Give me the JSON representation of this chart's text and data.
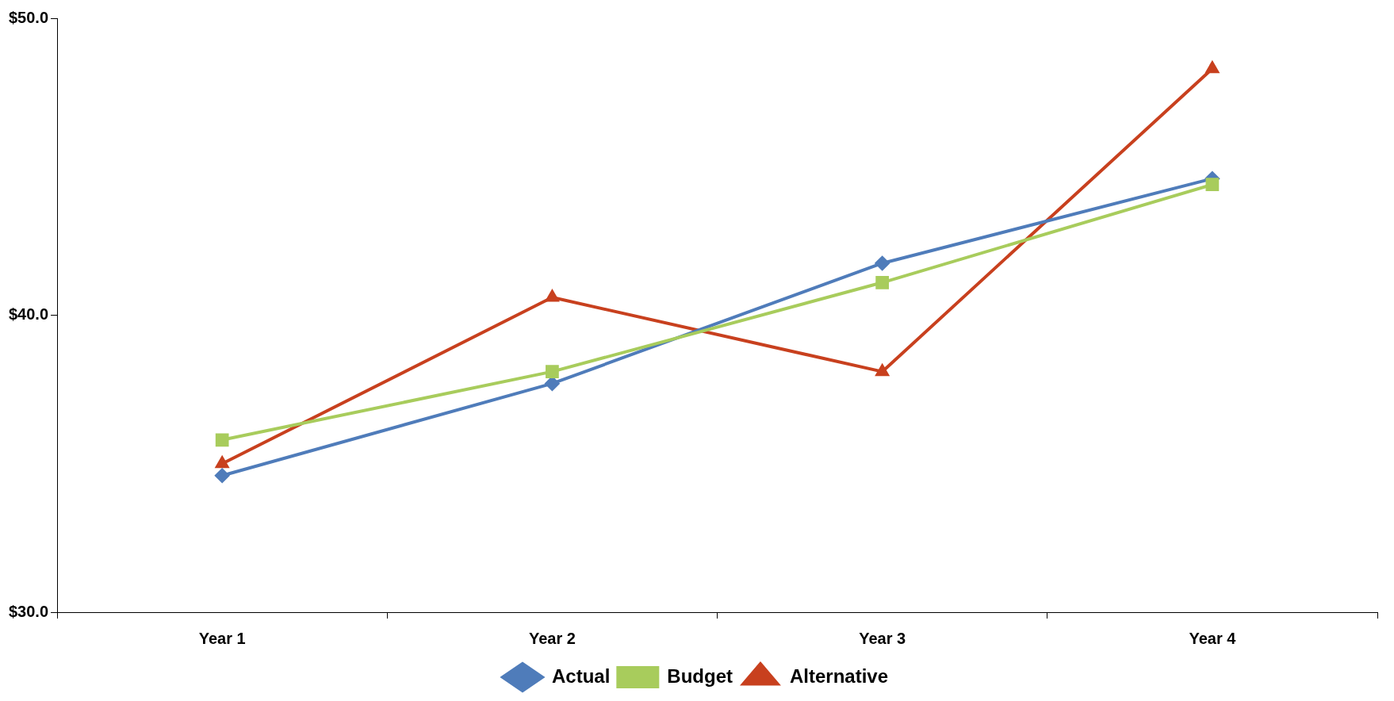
{
  "chart_data": {
    "type": "line",
    "categories": [
      "Year 1",
      "Year 2",
      "Year 3",
      "Year 4"
    ],
    "series": [
      {
        "name": "Actual",
        "color": "#4f7cba",
        "marker": "diamond",
        "values": [
          34.6,
          37.7,
          41.75,
          44.6
        ]
      },
      {
        "name": "Budget",
        "color": "#a8cc5c",
        "marker": "square",
        "values": [
          35.8,
          38.1,
          41.1,
          44.4
        ]
      },
      {
        "name": "Alternative",
        "color": "#c8401e",
        "marker": "triangle",
        "values": [
          35.0,
          40.6,
          38.1,
          48.3
        ]
      }
    ],
    "ylim": [
      30,
      50
    ],
    "yticks": [
      {
        "value": 30,
        "label": "$30.0"
      },
      {
        "value": 40,
        "label": "$40.0"
      },
      {
        "value": 50,
        "label": "$50.0"
      }
    ],
    "grid": false,
    "legend": "bottom",
    "line_style": "solid"
  }
}
